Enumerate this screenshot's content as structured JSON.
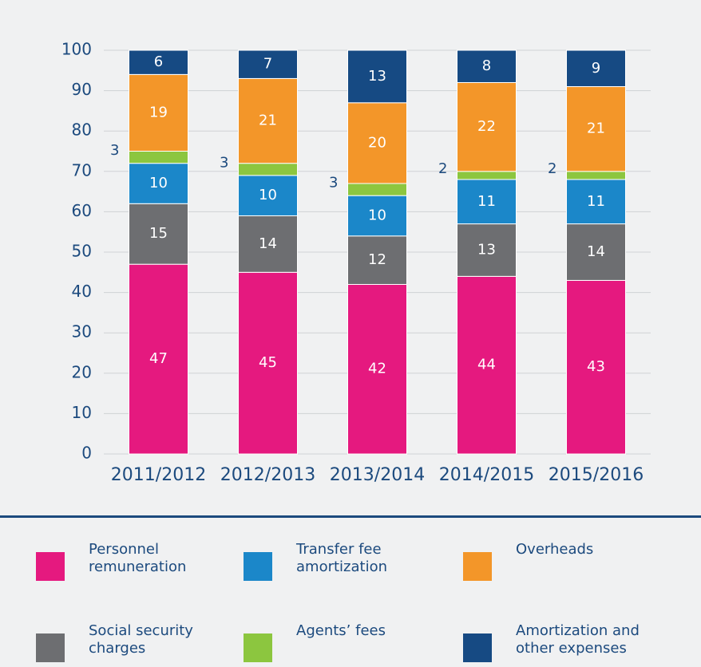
{
  "chart_data": {
    "type": "stacked_bar",
    "categories": [
      "2011/2012",
      "2012/2013",
      "2013/2014",
      "2014/2015",
      "2015/2016"
    ],
    "series": [
      {
        "name": "Personnel remuneration",
        "color": "#e5197f",
        "values": [
          47,
          45,
          42,
          44,
          43
        ]
      },
      {
        "name": "Social security charges",
        "color": "#6d6e71",
        "values": [
          15,
          14,
          12,
          13,
          14
        ]
      },
      {
        "name": "Transfer fee amortization",
        "color": "#1b87c9",
        "values": [
          10,
          10,
          10,
          11,
          11
        ]
      },
      {
        "name": "Agents’ fees",
        "color": "#8cc63f",
        "values": [
          3,
          3,
          3,
          2,
          2
        ]
      },
      {
        "name": "Overheads",
        "color": "#f39629",
        "values": [
          19,
          21,
          20,
          22,
          21
        ]
      },
      {
        "name": "Amortization and other expenses",
        "color": "#164a83",
        "values": [
          6,
          7,
          13,
          8,
          9
        ]
      }
    ],
    "ylim": [
      0,
      100
    ],
    "yticks": [
      0,
      10,
      20,
      30,
      40,
      50,
      60,
      70,
      80,
      90,
      100
    ],
    "grid": true
  }
}
